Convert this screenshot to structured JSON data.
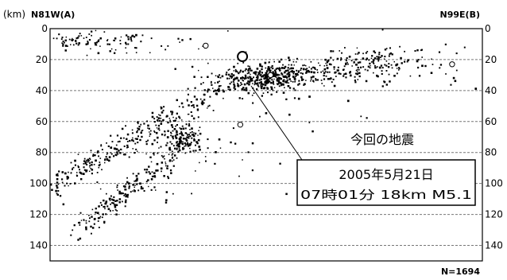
{
  "chart_data": {
    "type": "scatter",
    "unit_label": "(km)",
    "left_label": "N81W(A)",
    "right_label": "N99E(B)",
    "count_label": "N=1694",
    "ylim": [
      0,
      150
    ],
    "y_ticks": [
      0,
      20,
      40,
      60,
      80,
      100,
      120,
      140
    ],
    "gridlines": [
      20,
      40,
      60,
      80,
      100,
      120,
      140
    ],
    "grid": true,
    "x_range": [
      0,
      100
    ],
    "annotation": {
      "label": "今回の地震",
      "date_line": "2005年5月21日",
      "detail_line": "07時01分 18km M5.1",
      "event_x": 44.5,
      "event_depth": 18
    },
    "open_circles": [
      {
        "x": 44.5,
        "depth": 18,
        "size": "large"
      },
      {
        "x": 51,
        "depth": 30,
        "size": "small"
      },
      {
        "x": 44,
        "depth": 62,
        "size": "small"
      },
      {
        "x": 36,
        "depth": 11,
        "size": "small"
      },
      {
        "x": 93,
        "depth": 23,
        "size": "small"
      }
    ],
    "clusters": [
      {
        "cx": 8,
        "cy": 8,
        "sx": 5,
        "sy": 3,
        "n": 70
      },
      {
        "cx": 17,
        "cy": 9,
        "sx": 4,
        "sy": 4,
        "n": 25
      },
      {
        "cx": 28,
        "cy": 10,
        "sx": 8,
        "sy": 5,
        "n": 15
      },
      {
        "cx": 31,
        "cy": 70,
        "sx": 2.2,
        "sy": 5,
        "n": 130
      },
      {
        "cx": 27,
        "cy": 78,
        "sx": 6,
        "sy": 7,
        "n": 50
      },
      {
        "cx": 50,
        "cy": 32,
        "sx": 3.5,
        "sy": 4,
        "n": 220
      },
      {
        "cx": 44,
        "cy": 33,
        "sx": 5,
        "sy": 6,
        "n": 60
      },
      {
        "cx": 57,
        "cy": 30,
        "sx": 4,
        "sy": 4,
        "n": 70
      },
      {
        "cx": 73,
        "cy": 22,
        "sx": 5,
        "sy": 5,
        "n": 90
      },
      {
        "cx": 63,
        "cy": 28,
        "sx": 6,
        "sy": 5,
        "n": 40
      },
      {
        "cx": 84,
        "cy": 18,
        "sx": 7,
        "sy": 8,
        "n": 25
      },
      {
        "cx": 91,
        "cy": 33,
        "sx": 6,
        "sy": 14,
        "n": 14
      },
      {
        "cx": 18,
        "cy": 103,
        "sx": 8,
        "sy": 6,
        "n": 30
      },
      {
        "cx": 55,
        "cy": 48,
        "sx": 12,
        "sy": 18,
        "n": 20
      },
      {
        "cx": 45,
        "cy": 82,
        "sx": 7,
        "sy": 10,
        "n": 14
      }
    ],
    "bands": [
      {
        "x0": 0.5,
        "d0": 101,
        "x1": 44,
        "d1": 30,
        "w": 4.5,
        "n": 320
      },
      {
        "x0": 6,
        "d0": 130,
        "x1": 30,
        "d1": 82,
        "w": 4,
        "n": 160
      },
      {
        "x0": 44,
        "d0": 30,
        "x1": 82,
        "d1": 22,
        "w": 5,
        "n": 120
      }
    ]
  }
}
